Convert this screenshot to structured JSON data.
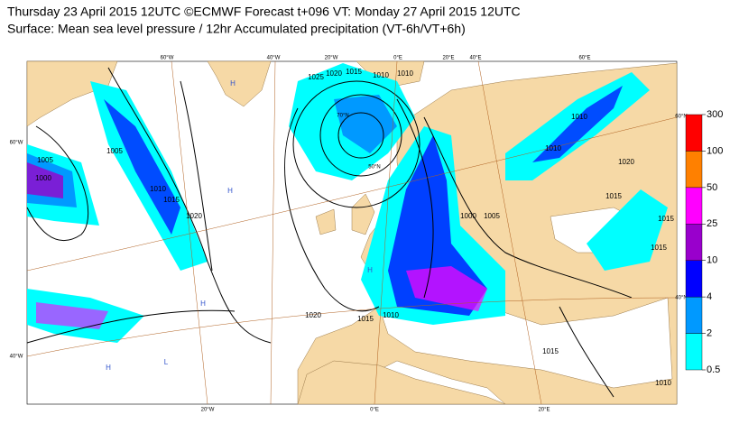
{
  "header": {
    "title_lines": [
      "Thursday 23 April 2015 12UTC ©ECMWF Forecast t+096 VT: Monday 27 April 2015 12UTC",
      "Surface: Mean sea level pressure / 12hr Accumulated precipitation (VT-6h/VT+6h)"
    ]
  },
  "legend": {
    "levels": [
      0.5,
      2,
      4,
      10,
      25,
      50,
      100,
      300
    ],
    "colors": [
      "#00ffff",
      "#0099ff",
      "#0000ff",
      "#9900cc",
      "#ff00ff",
      "#ff8000",
      "#ff0000"
    ]
  },
  "map": {
    "grid_labels": [
      "60°W",
      "40°W",
      "20°W",
      "0°E",
      "20°E",
      "40°E",
      "60°E",
      "60°W",
      "40°W",
      "20°W",
      "0°E",
      "20°E",
      "60°N",
      "40°N",
      "70°N",
      "50°N"
    ],
    "isobar_labels": [
      "1005",
      "1000",
      "1005",
      "1010",
      "1015",
      "1020",
      "1025",
      "1020",
      "1015",
      "1010",
      "1010",
      "1010",
      "1020",
      "1015",
      "1015",
      "1015",
      "1000",
      "1005",
      "1020",
      "1015",
      "1010",
      "1010",
      "1015",
      "1010"
    ],
    "pressure_centers": [
      "H",
      "H",
      "H",
      "H",
      "L",
      "H"
    ]
  }
}
